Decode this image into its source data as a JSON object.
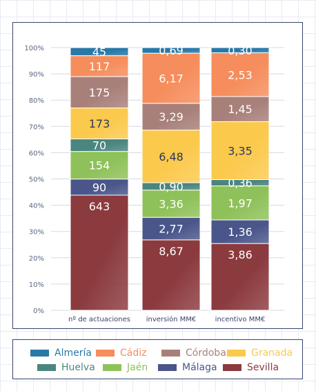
{
  "chart_data": {
    "type": "bar",
    "stacked": true,
    "normalized": true,
    "categories": [
      "nº de actuaciones",
      "inversión MM€",
      "incentivo MM€"
    ],
    "y_tick_labels": [
      "0%",
      "10%",
      "20%",
      "30%",
      "40%",
      "50%",
      "60%",
      "70%",
      "80%",
      "90%",
      "100%"
    ],
    "ylim": [
      0,
      100
    ],
    "grid": true,
    "legend_position": "bottom",
    "series": [
      {
        "name": "Sevilla",
        "color": "#8b3a3e",
        "values": [
          643,
          8.67,
          3.86
        ],
        "labels": [
          "643",
          "8,67",
          "3,86"
        ]
      },
      {
        "name": "Málaga",
        "color": "#4a568a",
        "values": [
          90,
          2.77,
          1.36
        ],
        "labels": [
          "90",
          "2,77",
          "1,36"
        ]
      },
      {
        "name": "Jaén",
        "color": "#8fc15a",
        "values": [
          154,
          3.36,
          1.97
        ],
        "labels": [
          "154",
          "3,36",
          "1,97"
        ]
      },
      {
        "name": "Huelva",
        "color": "#4a8580",
        "values": [
          70,
          0.9,
          0.36
        ],
        "labels": [
          "70",
          "0,90",
          "0,36"
        ]
      },
      {
        "name": "Granada",
        "color": "#fbc94c",
        "values": [
          173,
          6.48,
          3.35
        ],
        "labels": [
          "173",
          "6,48",
          "3,35"
        ]
      },
      {
        "name": "Córdoba",
        "color": "#a8807a",
        "values": [
          175,
          3.29,
          1.45
        ],
        "labels": [
          "175",
          "3,29",
          "1,45"
        ]
      },
      {
        "name": "Cádiz",
        "color": "#f68d5c",
        "values": [
          117,
          6.17,
          2.53
        ],
        "labels": [
          "117",
          "6,17",
          "2,53"
        ]
      },
      {
        "name": "Almería",
        "color": "#2878a8",
        "values": [
          45,
          0.69,
          0.3
        ],
        "labels": [
          "45",
          "0,69",
          "0,30"
        ]
      }
    ],
    "legend_order": [
      "Almería",
      "Cádiz",
      "Córdoba",
      "Granada",
      "Huelva",
      "Jaén",
      "Málaga",
      "Sevilla"
    ]
  }
}
